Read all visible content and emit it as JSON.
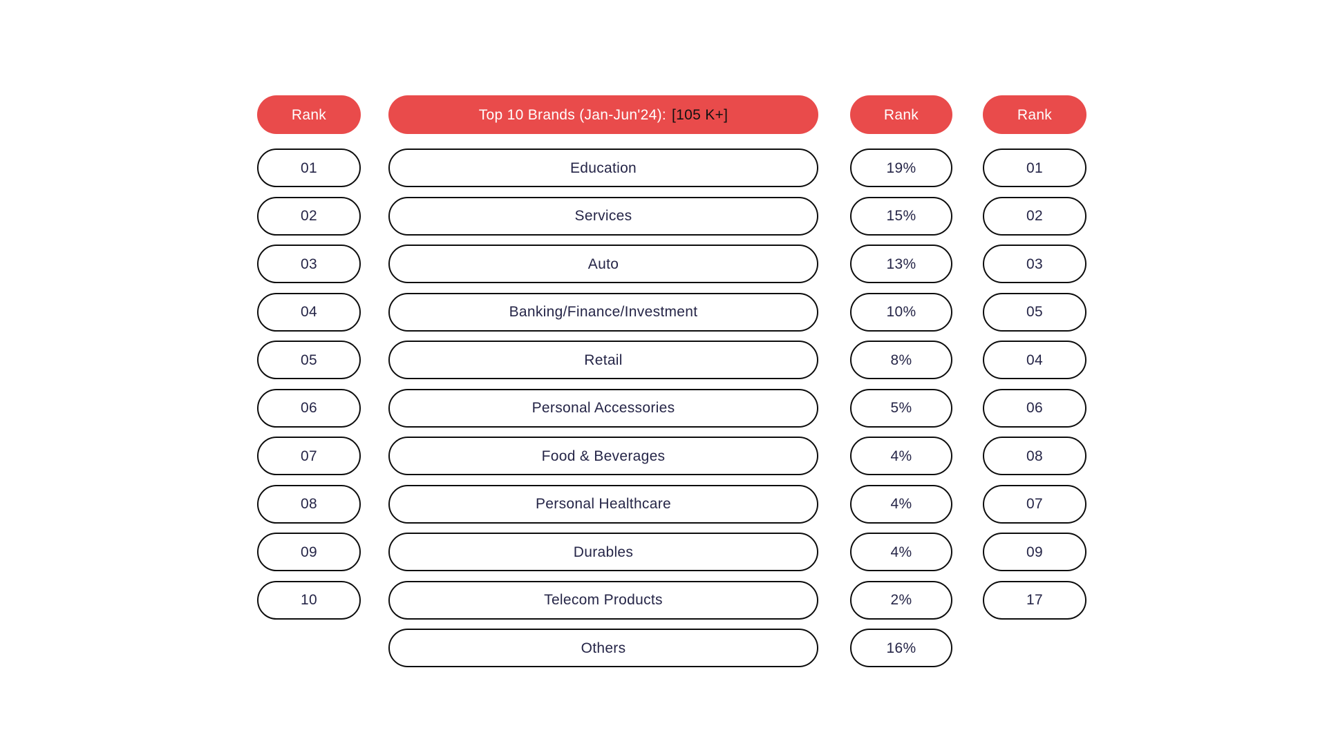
{
  "page": {
    "background": "#ffffff"
  },
  "colors": {
    "header_pill_bg": "#E94B4B",
    "header_pill_text": "#ffffff",
    "header_highlight_text": "#111111",
    "body_pill_bg": "#ffffff",
    "body_pill_border": "#0c0c0c",
    "body_pill_text": "#252547"
  },
  "headers": {
    "rank_left": "Rank",
    "brands_main": "Top 10 Brands (Jan-Jun'24):",
    "brands_highlight": "[105 K+]",
    "rank_share": "Rank",
    "rank_right": "Rank"
  },
  "rows": [
    {
      "rank": "01",
      "category": "Education",
      "share": "19%",
      "rank2": "01"
    },
    {
      "rank": "02",
      "category": "Services",
      "share": "15%",
      "rank2": "02"
    },
    {
      "rank": "03",
      "category": "Auto",
      "share": "13%",
      "rank2": "03"
    },
    {
      "rank": "04",
      "category": "Banking/Finance/Investment",
      "share": "10%",
      "rank2": "05"
    },
    {
      "rank": "05",
      "category": "Retail",
      "share": "8%",
      "rank2": "04"
    },
    {
      "rank": "06",
      "category": "Personal Accessories",
      "share": "5%",
      "rank2": "06"
    },
    {
      "rank": "07",
      "category": "Food & Beverages",
      "share": "4%",
      "rank2": "08"
    },
    {
      "rank": "08",
      "category": "Personal Healthcare",
      "share": "4%",
      "rank2": "07"
    },
    {
      "rank": "09",
      "category": "Durables",
      "share": "4%",
      "rank2": "09"
    },
    {
      "rank": "10",
      "category": "Telecom Products",
      "share": "2%",
      "rank2": "17"
    },
    {
      "rank": null,
      "category": "Others",
      "share": "16%",
      "rank2": null
    }
  ],
  "chart_data": {
    "type": "table",
    "title": "Top 10 Brands (Jan-Jun'24): [105 K+]",
    "columns": [
      "Rank",
      "Top 10 Brands (Jan-Jun'24): [105 K+]",
      "Rank",
      "Rank"
    ],
    "categories": [
      "Education",
      "Services",
      "Auto",
      "Banking/Finance/Investment",
      "Retail",
      "Personal Accessories",
      "Food & Beverages",
      "Personal Healthcare",
      "Durables",
      "Telecom Products",
      "Others"
    ],
    "series": [
      {
        "name": "rank_left",
        "values": [
          "01",
          "02",
          "03",
          "04",
          "05",
          "06",
          "07",
          "08",
          "09",
          "10",
          null
        ]
      },
      {
        "name": "share_percent",
        "values": [
          19,
          15,
          13,
          10,
          8,
          5,
          4,
          4,
          4,
          2,
          16
        ]
      },
      {
        "name": "rank_right",
        "values": [
          "01",
          "02",
          "03",
          "05",
          "04",
          "06",
          "08",
          "07",
          "09",
          "17",
          null
        ]
      }
    ],
    "layout": {
      "legend": false,
      "grid": false,
      "style": "pill-row infographic table"
    }
  }
}
